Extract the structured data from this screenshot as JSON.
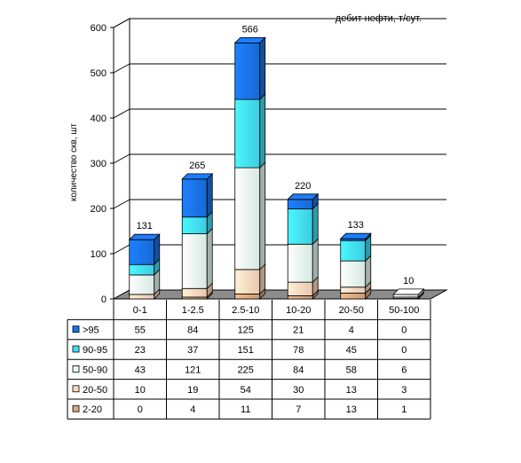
{
  "chart_data": {
    "type": "bar",
    "stacked": true,
    "three_d": true,
    "title": "дебит нефти, т/сут.",
    "xlabel": "",
    "ylabel": "количество скв, шт",
    "ylim": [
      0,
      600
    ],
    "yticks": [
      "0",
      "100",
      "200",
      "300",
      "400",
      "500",
      "600"
    ],
    "grid": true,
    "legend_placement": "data-table-left",
    "categories": [
      "0-1",
      "1-2.5",
      "2.5-10",
      "10-20",
      "20-50",
      "50-100"
    ],
    "totals": [
      "131",
      "265",
      "566",
      "220",
      "133",
      "10"
    ],
    "series": [
      {
        "name": "2-20",
        "values": [
          0,
          4,
          11,
          7,
          13,
          1
        ],
        "color": "#d9a97c"
      },
      {
        "name": "20-50",
        "values": [
          10,
          19,
          54,
          30,
          13,
          3
        ],
        "color": "#fcd7be"
      },
      {
        "name": "50-90",
        "values": [
          43,
          121,
          225,
          84,
          58,
          6
        ],
        "color": "#e8fbf4"
      },
      {
        "name": "90-95",
        "values": [
          23,
          37,
          151,
          78,
          45,
          0
        ],
        "color": "#42ddf5"
      },
      {
        "name": ">95",
        "values": [
          55,
          84,
          125,
          21,
          4,
          0
        ],
        "color": "#1a72e6"
      }
    ],
    "table_row_order": [
      ">95",
      "90-95",
      "50-90",
      "20-50",
      "2-20"
    ]
  }
}
